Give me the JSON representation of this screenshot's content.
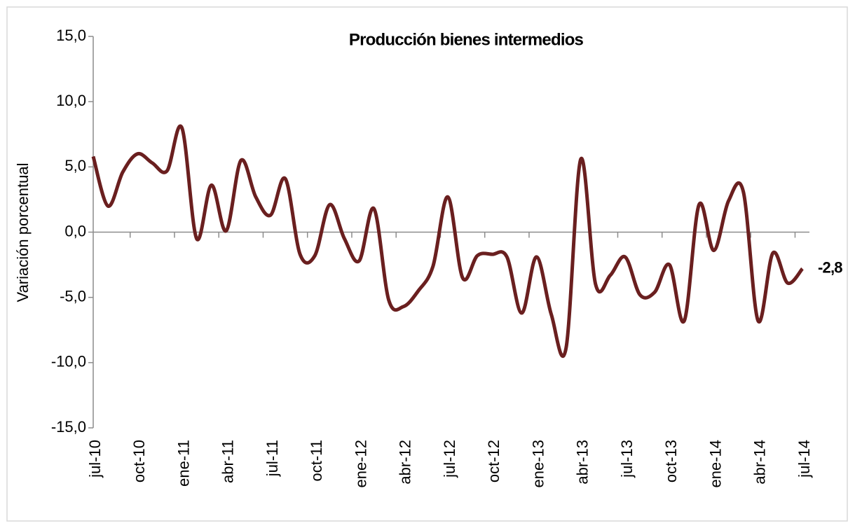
{
  "chart_data": {
    "type": "line",
    "title": "Producción bienes intermedios",
    "y_label": "Variación porcentual",
    "categories": [
      "jul-10",
      null,
      null,
      "oct-10",
      null,
      null,
      "ene-11",
      null,
      null,
      "abr-11",
      null,
      null,
      "jul-11",
      null,
      null,
      "oct-11",
      null,
      null,
      "ene-12",
      null,
      null,
      "abr-12",
      null,
      null,
      "jul-12",
      null,
      null,
      "oct-12",
      null,
      null,
      "ene-13",
      null,
      null,
      "abr-13",
      null,
      null,
      "jul-13",
      null,
      null,
      "oct-13",
      null,
      null,
      "ene-14",
      null,
      null,
      "abr-14",
      null,
      null,
      "jul-14"
    ],
    "series": [
      {
        "name": "Producción bienes intermedios",
        "color": "#6a1f1f",
        "values": [
          5.8,
          2.0,
          4.6,
          6.0,
          5.3,
          4.7,
          8.0,
          -0.5,
          3.6,
          0.1,
          5.5,
          2.7,
          1.3,
          4.1,
          -1.7,
          -1.8,
          2.1,
          -0.5,
          -2.2,
          1.8,
          -5.2,
          -5.7,
          -4.5,
          -2.6,
          2.7,
          -3.5,
          -1.8,
          -1.7,
          -1.9,
          -6.2,
          -1.9,
          -6.3,
          -8.9,
          5.6,
          -4.0,
          -3.3,
          -1.9,
          -4.8,
          -4.6,
          -2.5,
          -6.8,
          2.1,
          -1.4,
          2.4,
          3.1,
          -6.8,
          -1.6,
          -3.9,
          -2.8
        ],
        "value_labels": [
          null,
          null,
          null,
          null,
          null,
          null,
          null,
          null,
          null,
          null,
          null,
          null,
          null,
          null,
          null,
          null,
          null,
          null,
          null,
          null,
          null,
          null,
          null,
          null,
          null,
          null,
          null,
          null,
          null,
          null,
          null,
          null,
          null,
          null,
          null,
          null,
          null,
          null,
          null,
          null,
          null,
          null,
          null,
          null,
          null,
          null,
          null,
          null,
          "-2,8"
        ]
      }
    ],
    "ylim": [
      -15,
      15
    ],
    "yticks": [
      {
        "value": -15,
        "label": "-15,0"
      },
      {
        "value": -10,
        "label": "-10,0"
      },
      {
        "value": -5,
        "label": "-5,0"
      },
      {
        "value": 0,
        "label": "0,0"
      },
      {
        "value": 5,
        "label": "5,0"
      },
      {
        "value": 10,
        "label": "10,0"
      },
      {
        "value": 15,
        "label": "15,0"
      }
    ],
    "grid": false
  }
}
